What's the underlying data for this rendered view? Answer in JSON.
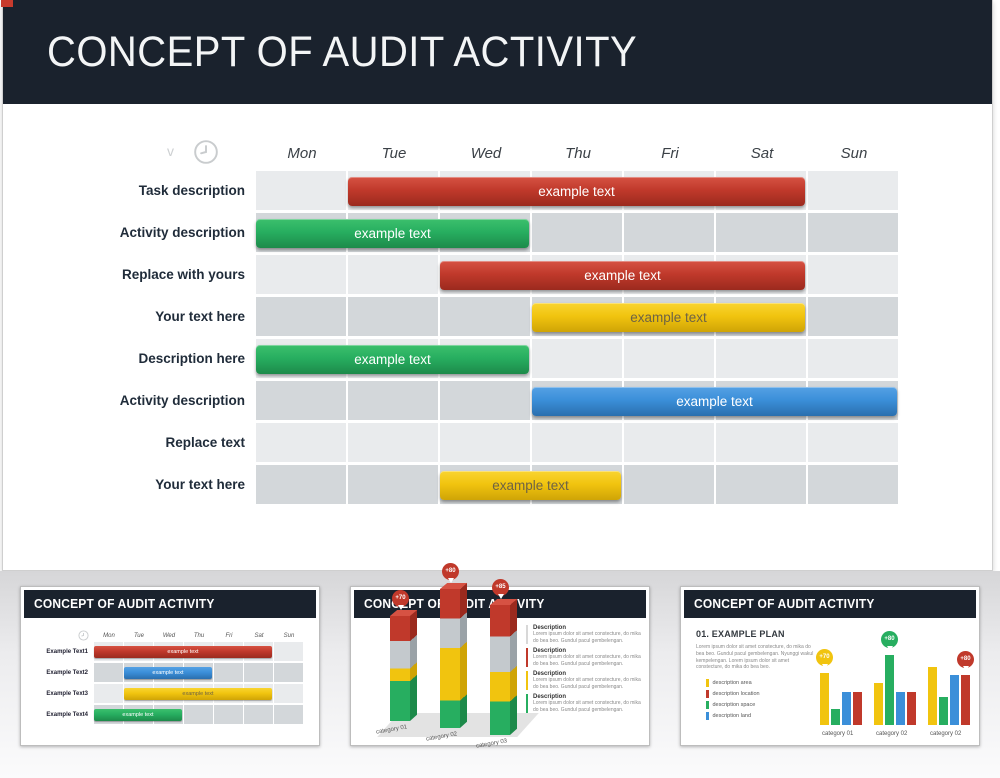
{
  "slide": {
    "title": "CONCEPT OF AUDIT ACTIVITY"
  },
  "gantt": {
    "v_mark": "v"
  },
  "colors": {
    "slide_header_bg": "#1a222d",
    "corner_accent": "#c73b2d",
    "grid_row_light": "#e9ebed",
    "grid_row_dark": "#d3d7da",
    "red": "#c0392b",
    "red_light": "#d65243",
    "red_dark": "#9b2a1e",
    "green": "#27ae60",
    "green_light": "#3cc06d",
    "green_dark": "#1d8a4a",
    "yellow": "#f1c40f",
    "yellow_light": "#f9d431",
    "yellow_dark": "#cfa406",
    "blue": "#3b8fd9",
    "blue_light": "#55a1e4",
    "blue_dark": "#2a6fae",
    "silver": "#c4c9cd",
    "silver_dark": "#9aa2a7",
    "yellow_bar_text": "#6e6345",
    "bar_text": "#ffffff"
  },
  "chart_data": [
    {
      "type": "bar",
      "subtype": "gantt",
      "title": "CONCEPT OF AUDIT ACTIVITY",
      "categories": [
        "Mon",
        "Tue",
        "Wed",
        "Thu",
        "Fri",
        "Sat",
        "Sun"
      ],
      "grid": true,
      "rows": [
        {
          "label": "Task description",
          "bar": {
            "start": 1,
            "span": 5,
            "color": "red",
            "text": "example text"
          }
        },
        {
          "label": "Activity description",
          "bar": {
            "start": 0,
            "span": 3,
            "color": "green",
            "text": "example text"
          }
        },
        {
          "label": "Replace with yours",
          "bar": {
            "start": 2,
            "span": 4,
            "color": "red",
            "text": "example text"
          }
        },
        {
          "label": "Your text here",
          "bar": {
            "start": 3,
            "span": 3,
            "color": "yellow",
            "text": "example text"
          }
        },
        {
          "label": "Description here",
          "bar": {
            "start": 0,
            "span": 3,
            "color": "green",
            "text": "example text"
          }
        },
        {
          "label": "Activity description",
          "bar": {
            "start": 3,
            "span": 4,
            "color": "blue",
            "text": "example text"
          }
        },
        {
          "label": "Replace text",
          "bar": null
        },
        {
          "label": "Your text here",
          "bar": {
            "start": 2,
            "span": 2,
            "color": "yellow",
            "text": "example text"
          }
        }
      ]
    },
    {
      "type": "bar",
      "subtype": "gantt-thumbnail",
      "categories": [
        "Mon",
        "Tue",
        "Wed",
        "Thu",
        "Fri",
        "Sat",
        "Sun"
      ],
      "rows": [
        {
          "label": "Example Text1",
          "bar": {
            "start": 0,
            "span": 6,
            "color": "red",
            "text": "example text"
          }
        },
        {
          "label": "Example Text2",
          "bar": {
            "start": 1,
            "span": 3,
            "color": "blue",
            "text": "example text"
          }
        },
        {
          "label": "Example Text3",
          "bar": {
            "start": 1,
            "span": 5,
            "color": "yellow",
            "text": "example text"
          }
        },
        {
          "label": "Example Text4",
          "bar": {
            "start": 0,
            "span": 3,
            "color": "green",
            "text": "example text"
          }
        }
      ]
    },
    {
      "type": "bar",
      "subtype": "3d-stacked",
      "categories": [
        "category 01",
        "category 02",
        "category 03"
      ],
      "stack_order": [
        "green",
        "yellow",
        "silver",
        "red"
      ],
      "stacks": [
        [
          19,
          6,
          13,
          12
        ],
        [
          13,
          25,
          14,
          14
        ],
        [
          16,
          14,
          17,
          15
        ]
      ],
      "markers": [
        {
          "text": "+70",
          "color": "red"
        },
        {
          "text": "+80",
          "color": "red"
        },
        {
          "text": "+85",
          "color": "red"
        }
      ],
      "descriptions": [
        {
          "title": "Description",
          "text": "Lorem ipsum dolor sit amet constecture, do mika do bea beo. Gundul pacul gembelengan.",
          "accent": "#d8d8d8"
        },
        {
          "title": "Description",
          "text": "Lorem ipsum dolor sit amet constecture, do mika do bea beo. Gundul pacul gembelengan.",
          "accent": "#c0392b"
        },
        {
          "title": "Description",
          "text": "Lorem ipsum dolor sit amet constecture, do mika do bea beo. Gundul pacul gembelengan.",
          "accent": "#f1c40f"
        },
        {
          "title": "Description",
          "text": "Lorem ipsum dolor sit amet constecture, do mika do bea beo. Gundul pacul gembelengan.",
          "accent": "#27ae60"
        }
      ]
    },
    {
      "type": "bar",
      "subtype": "grouped",
      "title": "01. EXAMPLE PLAN",
      "paragraph": "Lorem ipsum dolor sit amet constecture, do mika do bea beo. Gundul pacul gembelengan. Nyunggi wakul kempelengan. Lorem ipsum dolor sit amet constecture, do mika do bea beo.",
      "legend": [
        {
          "label": "description area",
          "color": "yellow"
        },
        {
          "label": "description location",
          "color": "red"
        },
        {
          "label": "description space",
          "color": "green"
        },
        {
          "label": "description land",
          "color": "blue"
        }
      ],
      "categories": [
        "category 01",
        "category 02",
        "category 02"
      ],
      "series": [
        {
          "name": "yellow",
          "values": [
            52,
            42,
            58
          ]
        },
        {
          "name": "green",
          "values": [
            16,
            70,
            28
          ]
        },
        {
          "name": "blue",
          "values": [
            33,
            33,
            50
          ]
        },
        {
          "name": "red",
          "values": [
            33,
            33,
            50
          ]
        }
      ],
      "markers": [
        {
          "group": 0,
          "bar": 0,
          "text": "+70",
          "color": "yellow"
        },
        {
          "group": 1,
          "bar": 1,
          "text": "+80",
          "color": "green"
        },
        {
          "group": 2,
          "bar": 3,
          "text": "+80",
          "color": "red"
        }
      ]
    }
  ],
  "thumbnails": [
    {
      "title": "CONCEPT OF AUDIT ACTIVITY"
    },
    {
      "title": "CONCEPT OF AUDIT ACTIVITY"
    },
    {
      "title": "CONCEPT OF AUDIT ACTIVITY"
    }
  ]
}
